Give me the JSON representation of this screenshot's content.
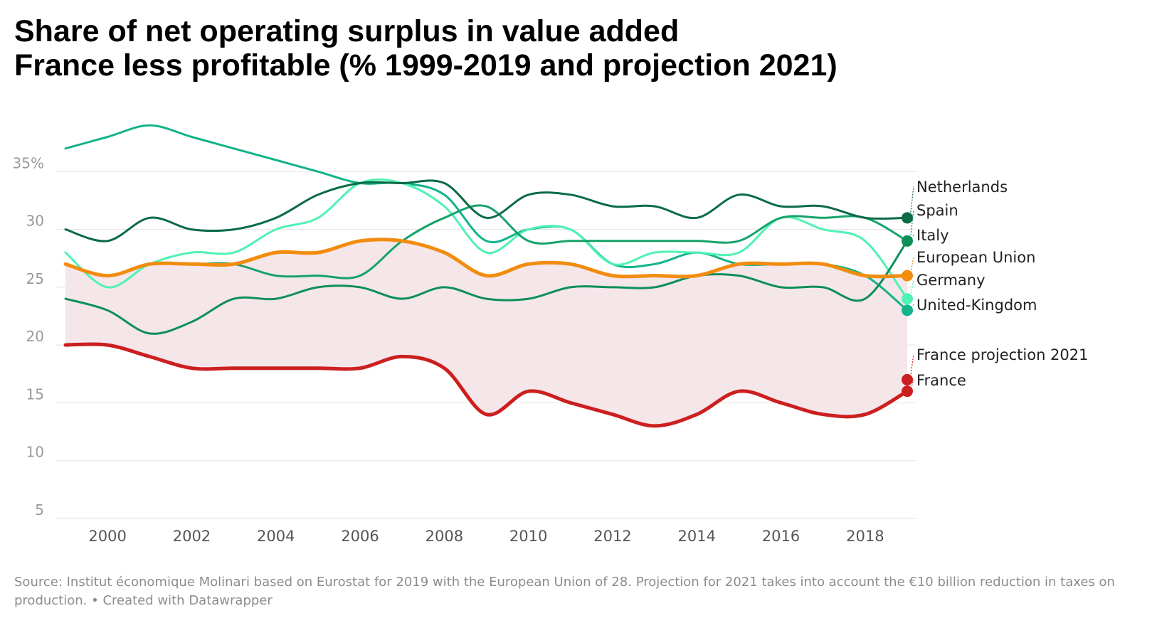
{
  "header": {
    "title_line1": "Share of net operating surplus in value added",
    "title_line2": "France less profitable (% 1999-2019 and projection 2021)"
  },
  "footer": {
    "source": "Source: Institut économique Molinari based on Eurostat for 2019 with the European Union of 28. Projection for 2021 takes into account the €10 billion reduction in taxes on production.",
    "credit": "• Created with Datawrapper"
  },
  "chart_data": {
    "type": "line",
    "x": [
      1999,
      2000,
      2001,
      2002,
      2003,
      2004,
      2005,
      2006,
      2007,
      2008,
      2009,
      2010,
      2011,
      2012,
      2013,
      2014,
      2015,
      2016,
      2017,
      2018,
      2019
    ],
    "x_ticks": [
      2000,
      2002,
      2004,
      2006,
      2008,
      2010,
      2012,
      2014,
      2016,
      2018
    ],
    "x_tick_labels": [
      "2000",
      "2002",
      "2004",
      "2006",
      "2008",
      "2010",
      "2012",
      "2014",
      "2016",
      "2018"
    ],
    "y_ticks": [
      5,
      10,
      15,
      20,
      25,
      30,
      35
    ],
    "y_tick_labels": [
      "5",
      "10",
      "15",
      "20",
      "25",
      "30",
      "35%"
    ],
    "xlim": [
      1999,
      2019
    ],
    "ylim": [
      5,
      40
    ],
    "grid": true,
    "shaded_area": {
      "between": [
        "European Union",
        "France"
      ],
      "color": "#f5e6ea"
    },
    "series": [
      {
        "name": "United-Kingdom",
        "color": "#12b38a",
        "width": 3,
        "values": [
          37,
          38,
          39,
          38,
          37,
          36,
          35,
          34,
          34,
          33,
          29,
          30,
          30,
          27,
          27,
          28,
          27,
          27,
          27,
          26,
          23
        ]
      },
      {
        "name": "Germany",
        "color": "#50f2b4",
        "width": 3,
        "values": [
          28,
          25,
          27,
          28,
          28,
          30,
          31,
          34,
          34,
          32,
          28,
          30,
          30,
          27,
          28,
          28,
          28,
          31,
          30,
          29,
          24
        ]
      },
      {
        "name": "Spain",
        "color": "#0d8f58",
        "width": 3,
        "values": [
          24,
          23,
          21,
          22,
          24,
          24,
          25,
          25,
          24,
          25,
          24,
          24,
          25,
          25,
          25,
          26,
          26,
          25,
          25,
          24,
          29
        ]
      },
      {
        "name": "Italy",
        "color": "#16a26b",
        "width": 3,
        "values": [
          27,
          26,
          27,
          27,
          27,
          26,
          26,
          26,
          29,
          31,
          32,
          29,
          29,
          29,
          29,
          29,
          29,
          31,
          31,
          31,
          29
        ]
      },
      {
        "name": "Netherlands",
        "color": "#0a6b45",
        "width": 3,
        "values": [
          30,
          29,
          31,
          30,
          30,
          31,
          33,
          34,
          34,
          34,
          31,
          33,
          33,
          32,
          32,
          31,
          33,
          32,
          32,
          31,
          31
        ]
      },
      {
        "name": "European Union",
        "color": "#f28c0e",
        "width": 5,
        "values": [
          27,
          26,
          27,
          27,
          27,
          28,
          28,
          29,
          29,
          28,
          26,
          27,
          27,
          26,
          26,
          26,
          27,
          27,
          27,
          26,
          26
        ]
      },
      {
        "name": "France",
        "color": "#cc1f1f",
        "width": 5,
        "values": [
          20,
          20,
          19,
          18,
          18,
          18,
          18,
          18,
          19,
          18,
          14,
          16,
          15,
          14,
          13,
          14,
          16,
          15,
          14,
          14,
          16
        ]
      }
    ],
    "end_labels": [
      {
        "name": "Netherlands",
        "value": 31,
        "color": "#0a6b45",
        "dot": true
      },
      {
        "name": "Spain",
        "value": 29,
        "color": "#0d8f58",
        "dot": true
      },
      {
        "name": "Italy",
        "value": 29,
        "color": "#16a26b",
        "dot": false
      },
      {
        "name": "European Union",
        "value": 26,
        "color": "#f28c0e",
        "dot": true
      },
      {
        "name": "Germany",
        "value": 24,
        "color": "#50f2b4",
        "dot": true
      },
      {
        "name": "United-Kingdom",
        "value": 23,
        "color": "#12b38a",
        "dot": true
      },
      {
        "name": "France projection 2021",
        "value": 17,
        "color": "#cc1f1f",
        "dot": true
      },
      {
        "name": "France",
        "value": 16,
        "color": "#cc1f1f",
        "dot": true
      }
    ]
  }
}
